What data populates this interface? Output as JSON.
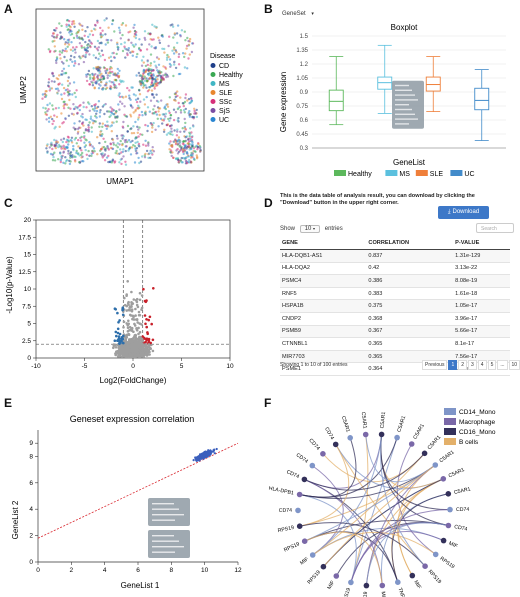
{
  "panel_labels": [
    "A",
    "B",
    "C",
    "D",
    "E",
    "F"
  ],
  "panelA": {
    "xlabel": "UMAP1",
    "ylabel": "UMAP2",
    "legend_title": "Disease",
    "legend": [
      {
        "name": "CD",
        "color": "#1f3f8a"
      },
      {
        "name": "Healthy",
        "color": "#3aa853"
      },
      {
        "name": "MS",
        "color": "#41b6c4"
      },
      {
        "name": "SLE",
        "color": "#e8862e"
      },
      {
        "name": "SSc",
        "color": "#d6307a"
      },
      {
        "name": "SjS",
        "color": "#7a4ea3"
      },
      {
        "name": "UC",
        "color": "#2a86d1"
      }
    ]
  },
  "panelB": {
    "dropdown_label": "GeneSet",
    "dropdown_arrow": "▾",
    "title": "Boxplot",
    "xlabel": "GeneList",
    "ylabel": "Gene expression"
  },
  "panelC": {
    "xlabel": "Log2(FoldChange)",
    "ylabel": "-Log10(p-Value)"
  },
  "panelD": {
    "intro": "This is the data table of analysis result, you can download by clicking the \"Download\" button in the upper right corner.",
    "download_label": "Download",
    "show_label": "Show",
    "show_value": "10",
    "entries_label": "entries",
    "search_placeholder": "Search",
    "columns": [
      "GENE",
      "CORRELATION",
      "P-VALUE"
    ],
    "rows": [
      [
        "HLA-DQB1-AS1",
        "0.837",
        "1.31e-129"
      ],
      [
        "HLA-DQA2",
        "0.42",
        "3.13e-22"
      ],
      [
        "PSMC4",
        "0.386",
        "8.08e-19"
      ],
      [
        "RNF5",
        "0.383",
        "1.61e-18"
      ],
      [
        "HSPA1B",
        "0.375",
        "1.05e-17"
      ],
      [
        "CNDP2",
        "0.368",
        "3.96e-17"
      ],
      [
        "PSMB9",
        "0.367",
        "5.66e-17"
      ],
      [
        "CTNNBL1",
        "0.365",
        "8.1e-17"
      ],
      [
        "MIR7703",
        "0.365",
        "7.56e-17"
      ],
      [
        "PSME1",
        "0.364",
        "1.08e-16"
      ]
    ],
    "info": "Showing 1 to 10 of 100 entries",
    "pager": [
      "Previous",
      "1",
      "2",
      "3",
      "4",
      "5",
      "...",
      "10",
      "Next"
    ]
  },
  "panelE": {
    "title": "Geneset expression correlation",
    "xlabel": "GeneList 1",
    "ylabel": "GeneList 2"
  },
  "panelF": {
    "legend": [
      {
        "name": "CD14_Mono",
        "color": "#7f95c8"
      },
      {
        "name": "Macrophage",
        "color": "#7a68a8"
      },
      {
        "name": "CD16_Mono",
        "color": "#33305a"
      },
      {
        "name": "B cells",
        "color": "#e3b06a"
      }
    ],
    "node_labels": [
      "C5AR1",
      "C5AR1",
      "C5AR1",
      "C5AR1",
      "C5AR1",
      "C5AR1",
      "C5AR1",
      "CD74",
      "CD74",
      "MIF",
      "RPS19",
      "RPS19",
      "MIF",
      "TNFRSF13B",
      "MIF",
      "RPS19",
      "RPS19",
      "MIF",
      "RPS19",
      "MIF",
      "RPS19",
      "RPS19",
      "CD74",
      "HLA-DPB1",
      "CD74",
      "CD74",
      "CD74",
      "CD74",
      "C5AR1",
      "C5AR1"
    ]
  },
  "chart_data": [
    {
      "type": "scatter",
      "title": "",
      "xlabel": "UMAP1",
      "ylabel": "UMAP2",
      "legend_title": "Disease",
      "series": [
        {
          "name": "CD"
        },
        {
          "name": "Healthy"
        },
        {
          "name": "MS"
        },
        {
          "name": "SLE"
        },
        {
          "name": "SSc"
        },
        {
          "name": "SjS"
        },
        {
          "name": "UC"
        }
      ],
      "legend_position": "right"
    },
    {
      "type": "box",
      "title": "Boxplot",
      "xlabel": "GeneList",
      "ylabel": "Gene expression",
      "ylim": [
        0.3,
        1.5
      ],
      "yticks": [
        0.3,
        0.45,
        0.6,
        0.75,
        0.9,
        1.05,
        1.2,
        1.35,
        1.5
      ],
      "series": [
        {
          "name": "Healthy",
          "color": "#5cb85c",
          "min": 0.55,
          "q1": 0.7,
          "median": 0.8,
          "q3": 0.92,
          "max": 1.28
        },
        {
          "name": "MS",
          "color": "#5bc0de",
          "min": 0.67,
          "q1": 0.93,
          "median": 1.0,
          "q3": 1.06,
          "max": 1.4
        },
        {
          "name": "SLE",
          "color": "#ef7f3a",
          "min": 0.69,
          "q1": 0.91,
          "median": 0.98,
          "q3": 1.06,
          "max": 1.28
        },
        {
          "name": "UC",
          "color": "#428bca",
          "min": 0.38,
          "q1": 0.71,
          "median": 0.81,
          "q3": 0.94,
          "max": 1.14
        }
      ],
      "legend_position": "bottom"
    },
    {
      "type": "scatter",
      "title": "",
      "xlabel": "Log2(FoldChange)",
      "ylabel": "-Log10(p-Value)",
      "xlim": [
        -10,
        10
      ],
      "ylim": [
        0,
        20
      ],
      "xticks": [
        -10,
        -5,
        0,
        5,
        10
      ],
      "yticks": [
        0,
        2.5,
        5,
        7.5,
        10,
        12.5,
        15,
        17.5,
        20
      ],
      "thresholds": {
        "x": [
          -1,
          1
        ],
        "y": 2
      },
      "series": [
        {
          "color": "#9e9e9e"
        },
        {
          "color": "#2e6fab"
        },
        {
          "color": "#c8202a"
        }
      ]
    },
    {
      "type": "table",
      "columns": [
        "GENE",
        "CORRELATION",
        "P-VALUE"
      ]
    },
    {
      "type": "scatter",
      "title": "Geneset expression correlation",
      "xlabel": "GeneList 1",
      "ylabel": "GeneList 2",
      "xlim": [
        0,
        12
      ],
      "ylim": [
        0,
        10
      ],
      "xticks": [
        0,
        2,
        4,
        6,
        8,
        10,
        12
      ],
      "yticks": [
        0,
        2,
        4,
        6,
        8,
        9
      ],
      "fit": {
        "intercept": 1.8,
        "slope": 0.6
      },
      "cluster": {
        "x_center": 10,
        "y_center": 8,
        "x_range": [
          8.5,
          11.5
        ],
        "y_range": [
          7.4,
          8.7
        ]
      },
      "point_color": "#3b5fbd"
    },
    {
      "type": "chord",
      "legend_position": "top-right"
    }
  ]
}
